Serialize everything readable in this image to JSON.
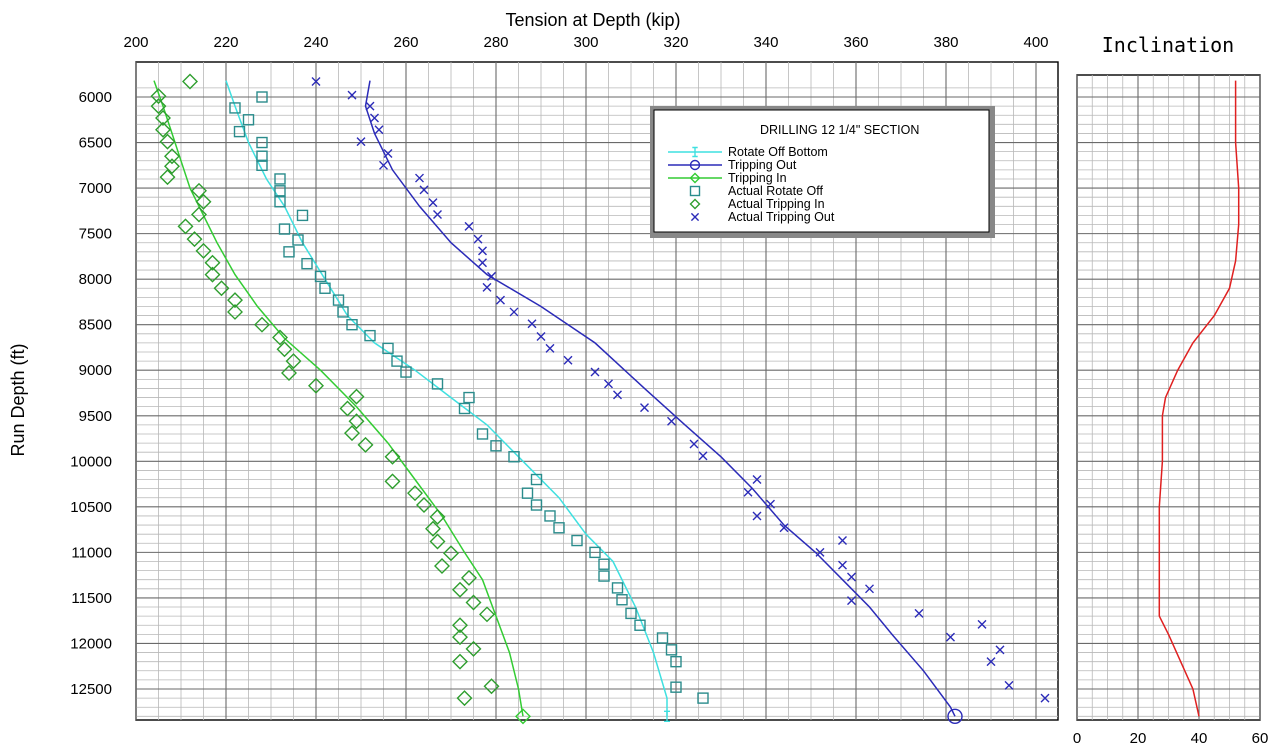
{
  "chart_data": [
    {
      "type": "line",
      "title": "",
      "xlabel": "Tension at Depth (kip)",
      "ylabel": "Run Depth (ft)",
      "xlim": [
        200,
        405
      ],
      "ylim": [
        5850,
        12850
      ],
      "y_reversed": true,
      "x_ticks": [
        200,
        220,
        240,
        260,
        280,
        300,
        320,
        340,
        360,
        380,
        400
      ],
      "y_ticks": [
        6000,
        6500,
        7000,
        7500,
        8000,
        8500,
        9000,
        9500,
        10000,
        10500,
        11000,
        11500,
        12000,
        12500
      ],
      "grid": true,
      "legend": {
        "title": "DRILLING 12 1/4\" SECTION",
        "placement": "top-right",
        "entries": [
          "Rotate Off Bottom",
          "Tripping Out",
          "Tripping In",
          "Actual Rotate Off",
          "Actual Tripping In",
          "Actual Tripping Out"
        ]
      },
      "series": [
        {
          "name": "Rotate Off Bottom",
          "kind": "line",
          "color": "#3fe0e0",
          "end_marker": "cross",
          "points": [
            [
              220,
              5820
            ],
            [
              222,
              6100
            ],
            [
              225,
              6500
            ],
            [
              229,
              6900
            ],
            [
              233,
              7200
            ],
            [
              237,
              7600
            ],
            [
              242,
              8000
            ],
            [
              247,
              8400
            ],
            [
              253,
              8700
            ],
            [
              262,
              9000
            ],
            [
              270,
              9300
            ],
            [
              278,
              9600
            ],
            [
              286,
              10000
            ],
            [
              294,
              10400
            ],
            [
              300,
              10800
            ],
            [
              306,
              11100
            ],
            [
              311,
              11600
            ],
            [
              315,
              12100
            ],
            [
              318,
              12600
            ],
            [
              318,
              12800
            ]
          ]
        },
        {
          "name": "Tripping Out",
          "kind": "line",
          "color": "#2b2bb8",
          "end_marker": "circle",
          "points": [
            [
              252,
              5820
            ],
            [
              251,
              6100
            ],
            [
              253,
              6400
            ],
            [
              257,
              6800
            ],
            [
              263,
              7200
            ],
            [
              270,
              7600
            ],
            [
              278,
              7950
            ],
            [
              290,
              8300
            ],
            [
              302,
              8700
            ],
            [
              313,
              9200
            ],
            [
              322,
              9600
            ],
            [
              330,
              9950
            ],
            [
              337,
              10300
            ],
            [
              344,
              10700
            ],
            [
              351,
              11000
            ],
            [
              357,
              11300
            ],
            [
              363,
              11600
            ],
            [
              368,
              11900
            ],
            [
              375,
              12300
            ],
            [
              381,
              12700
            ],
            [
              382,
              12800
            ]
          ]
        },
        {
          "name": "Tripping In",
          "kind": "line",
          "color": "#33cc33",
          "end_marker": "diamond",
          "points": [
            [
              204,
              5820
            ],
            [
              206,
              6100
            ],
            [
              208,
              6400
            ],
            [
              210,
              6700
            ],
            [
              212,
              7000
            ],
            [
              215,
              7300
            ],
            [
              218,
              7600
            ],
            [
              222,
              7950
            ],
            [
              227,
              8300
            ],
            [
              233,
              8650
            ],
            [
              241,
              9000
            ],
            [
              249,
              9400
            ],
            [
              256,
              9800
            ],
            [
              262,
              10200
            ],
            [
              268,
              10600
            ],
            [
              273,
              11000
            ],
            [
              277,
              11300
            ],
            [
              280,
              11700
            ],
            [
              283,
              12100
            ],
            [
              285,
              12500
            ],
            [
              286,
              12800
            ]
          ]
        },
        {
          "name": "Actual Rotate Off",
          "kind": "scatter",
          "marker": "square",
          "color": "#2a8c8c",
          "points": [
            [
              228,
              6000
            ],
            [
              222,
              6120
            ],
            [
              225,
              6250
            ],
            [
              223,
              6380
            ],
            [
              228,
              6500
            ],
            [
              228,
              6650
            ],
            [
              228,
              6750
            ],
            [
              232,
              6900
            ],
            [
              232,
              7030
            ],
            [
              232,
              7150
            ],
            [
              237,
              7300
            ],
            [
              233,
              7450
            ],
            [
              236,
              7570
            ],
            [
              234,
              7700
            ],
            [
              238,
              7830
            ],
            [
              241,
              7970
            ],
            [
              242,
              8100
            ],
            [
              245,
              8230
            ],
            [
              246,
              8360
            ],
            [
              248,
              8500
            ],
            [
              252,
              8620
            ],
            [
              256,
              8760
            ],
            [
              258,
              8900
            ],
            [
              260,
              9020
            ],
            [
              267,
              9150
            ],
            [
              274,
              9300
            ],
            [
              273,
              9420
            ],
            [
              277,
              9700
            ],
            [
              280,
              9830
            ],
            [
              284,
              9950
            ],
            [
              289,
              10200
            ],
            [
              287,
              10350
            ],
            [
              289,
              10480
            ],
            [
              292,
              10600
            ],
            [
              294,
              10730
            ],
            [
              298,
              10870
            ],
            [
              302,
              11000
            ],
            [
              304,
              11130
            ],
            [
              304,
              11260
            ],
            [
              307,
              11390
            ],
            [
              308,
              11520
            ],
            [
              310,
              11670
            ],
            [
              312,
              11800
            ],
            [
              317,
              11940
            ],
            [
              319,
              12070
            ],
            [
              320,
              12200
            ],
            [
              320,
              12480
            ],
            [
              326,
              12600
            ]
          ]
        },
        {
          "name": "Actual Tripping In",
          "kind": "scatter",
          "marker": "diamond",
          "color": "#2e9e2e",
          "points": [
            [
              212,
              5830
            ],
            [
              205,
              5990
            ],
            [
              205,
              6100
            ],
            [
              206,
              6230
            ],
            [
              206,
              6360
            ],
            [
              207,
              6490
            ],
            [
              208,
              6650
            ],
            [
              208,
              6760
            ],
            [
              207,
              6880
            ],
            [
              214,
              7030
            ],
            [
              215,
              7150
            ],
            [
              214,
              7290
            ],
            [
              211,
              7420
            ],
            [
              213,
              7560
            ],
            [
              215,
              7690
            ],
            [
              217,
              7820
            ],
            [
              217,
              7950
            ],
            [
              219,
              8100
            ],
            [
              222,
              8230
            ],
            [
              222,
              8360
            ],
            [
              228,
              8500
            ],
            [
              232,
              8640
            ],
            [
              233,
              8770
            ],
            [
              235,
              8900
            ],
            [
              234,
              9030
            ],
            [
              240,
              9170
            ],
            [
              249,
              9290
            ],
            [
              247,
              9420
            ],
            [
              249,
              9560
            ],
            [
              248,
              9690
            ],
            [
              251,
              9820
            ],
            [
              257,
              9950
            ],
            [
              257,
              10220
            ],
            [
              262,
              10350
            ],
            [
              264,
              10480
            ],
            [
              267,
              10610
            ],
            [
              266,
              10740
            ],
            [
              267,
              10880
            ],
            [
              270,
              11010
            ],
            [
              268,
              11150
            ],
            [
              274,
              11280
            ],
            [
              272,
              11410
            ],
            [
              275,
              11550
            ],
            [
              278,
              11680
            ],
            [
              272,
              11800
            ],
            [
              272,
              11930
            ],
            [
              275,
              12060
            ],
            [
              272,
              12200
            ],
            [
              279,
              12470
            ],
            [
              273,
              12600
            ]
          ]
        },
        {
          "name": "Actual Tripping Out",
          "kind": "scatter",
          "marker": "x",
          "color": "#2b2bb8",
          "points": [
            [
              240,
              5830
            ],
            [
              248,
              5980
            ],
            [
              252,
              6100
            ],
            [
              253,
              6230
            ],
            [
              254,
              6360
            ],
            [
              250,
              6490
            ],
            [
              256,
              6620
            ],
            [
              255,
              6750
            ],
            [
              263,
              6890
            ],
            [
              264,
              7020
            ],
            [
              266,
              7160
            ],
            [
              267,
              7290
            ],
            [
              274,
              7420
            ],
            [
              276,
              7560
            ],
            [
              277,
              7690
            ],
            [
              277,
              7820
            ],
            [
              279,
              7970
            ],
            [
              278,
              8090
            ],
            [
              281,
              8230
            ],
            [
              284,
              8360
            ],
            [
              288,
              8490
            ],
            [
              290,
              8630
            ],
            [
              292,
              8760
            ],
            [
              296,
              8890
            ],
            [
              302,
              9020
            ],
            [
              305,
              9150
            ],
            [
              307,
              9270
            ],
            [
              313,
              9410
            ],
            [
              319,
              9560
            ],
            [
              324,
              9810
            ],
            [
              326,
              9940
            ],
            [
              338,
              10200
            ],
            [
              336,
              10340
            ],
            [
              341,
              10470
            ],
            [
              338,
              10600
            ],
            [
              344,
              10730
            ],
            [
              352,
              11000
            ],
            [
              357,
              10870
            ],
            [
              357,
              11140
            ],
            [
              359,
              11270
            ],
            [
              363,
              11400
            ],
            [
              359,
              11530
            ],
            [
              374,
              11670
            ],
            [
              388,
              11790
            ],
            [
              381,
              11930
            ],
            [
              392,
              12070
            ],
            [
              390,
              12200
            ],
            [
              394,
              12460
            ],
            [
              402,
              12600
            ]
          ]
        }
      ]
    },
    {
      "type": "line",
      "title": "Inclination",
      "xlabel": "",
      "ylabel": "",
      "xlim": [
        0,
        60
      ],
      "ylim": [
        5850,
        12850
      ],
      "y_reversed": true,
      "x_ticks": [
        0,
        20,
        40,
        60
      ],
      "grid": true,
      "series": [
        {
          "kind": "line",
          "color": "#e02020",
          "points": [
            [
              52,
              5820
            ],
            [
              52,
              6500
            ],
            [
              53,
              7000
            ],
            [
              53,
              7400
            ],
            [
              52,
              7800
            ],
            [
              50,
              8100
            ],
            [
              45,
              8400
            ],
            [
              38,
              8700
            ],
            [
              33,
              9000
            ],
            [
              29,
              9300
            ],
            [
              28,
              9500
            ],
            [
              28,
              10000
            ],
            [
              27,
              10500
            ],
            [
              27,
              11000
            ],
            [
              27,
              11500
            ],
            [
              27,
              11700
            ],
            [
              30,
              11900
            ],
            [
              34,
              12200
            ],
            [
              38,
              12500
            ],
            [
              40,
              12800
            ]
          ]
        }
      ]
    }
  ]
}
